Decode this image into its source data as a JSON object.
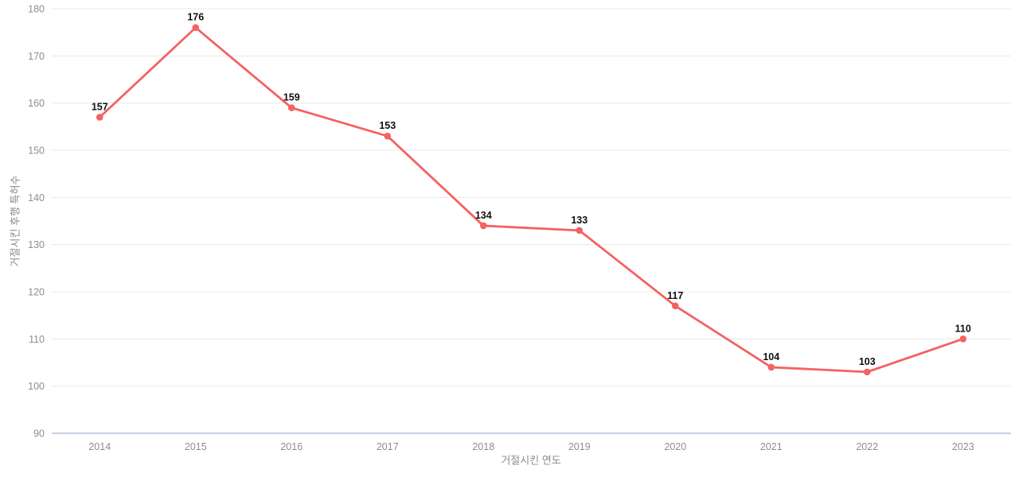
{
  "chart": {
    "xlabel": "거절시킨 연도",
    "ylabel": "거절시킨 후행 특허수"
  },
  "chart_data": {
    "type": "line",
    "title": "",
    "categories": [
      "2014",
      "2015",
      "2016",
      "2017",
      "2018",
      "2019",
      "2020",
      "2021",
      "2022",
      "2023"
    ],
    "series": [
      {
        "name": "거절시킨 후행 특허수",
        "values": [
          157,
          176,
          159,
          153,
          134,
          133,
          117,
          104,
          103,
          110
        ]
      }
    ],
    "xlabel": "거절시킨 연도",
    "ylabel": "거절시킨 후행 특허수",
    "ylim": [
      90,
      180
    ],
    "ytick_step": 10,
    "yticks": [
      90,
      100,
      110,
      120,
      130,
      140,
      150,
      160,
      170,
      180
    ],
    "grid": "horizontal-only",
    "legend_position": "none",
    "data_labels_shown": true,
    "colors": {
      "line": "#f46262",
      "marker": "#f46262",
      "data_label": "#111111",
      "tick_label": "#8e8e8e",
      "axis_title": "#8a8a8a",
      "gridline": "#e8e8e8",
      "axis_baseline": "#c5d2e2",
      "background": "#ffffff"
    }
  }
}
